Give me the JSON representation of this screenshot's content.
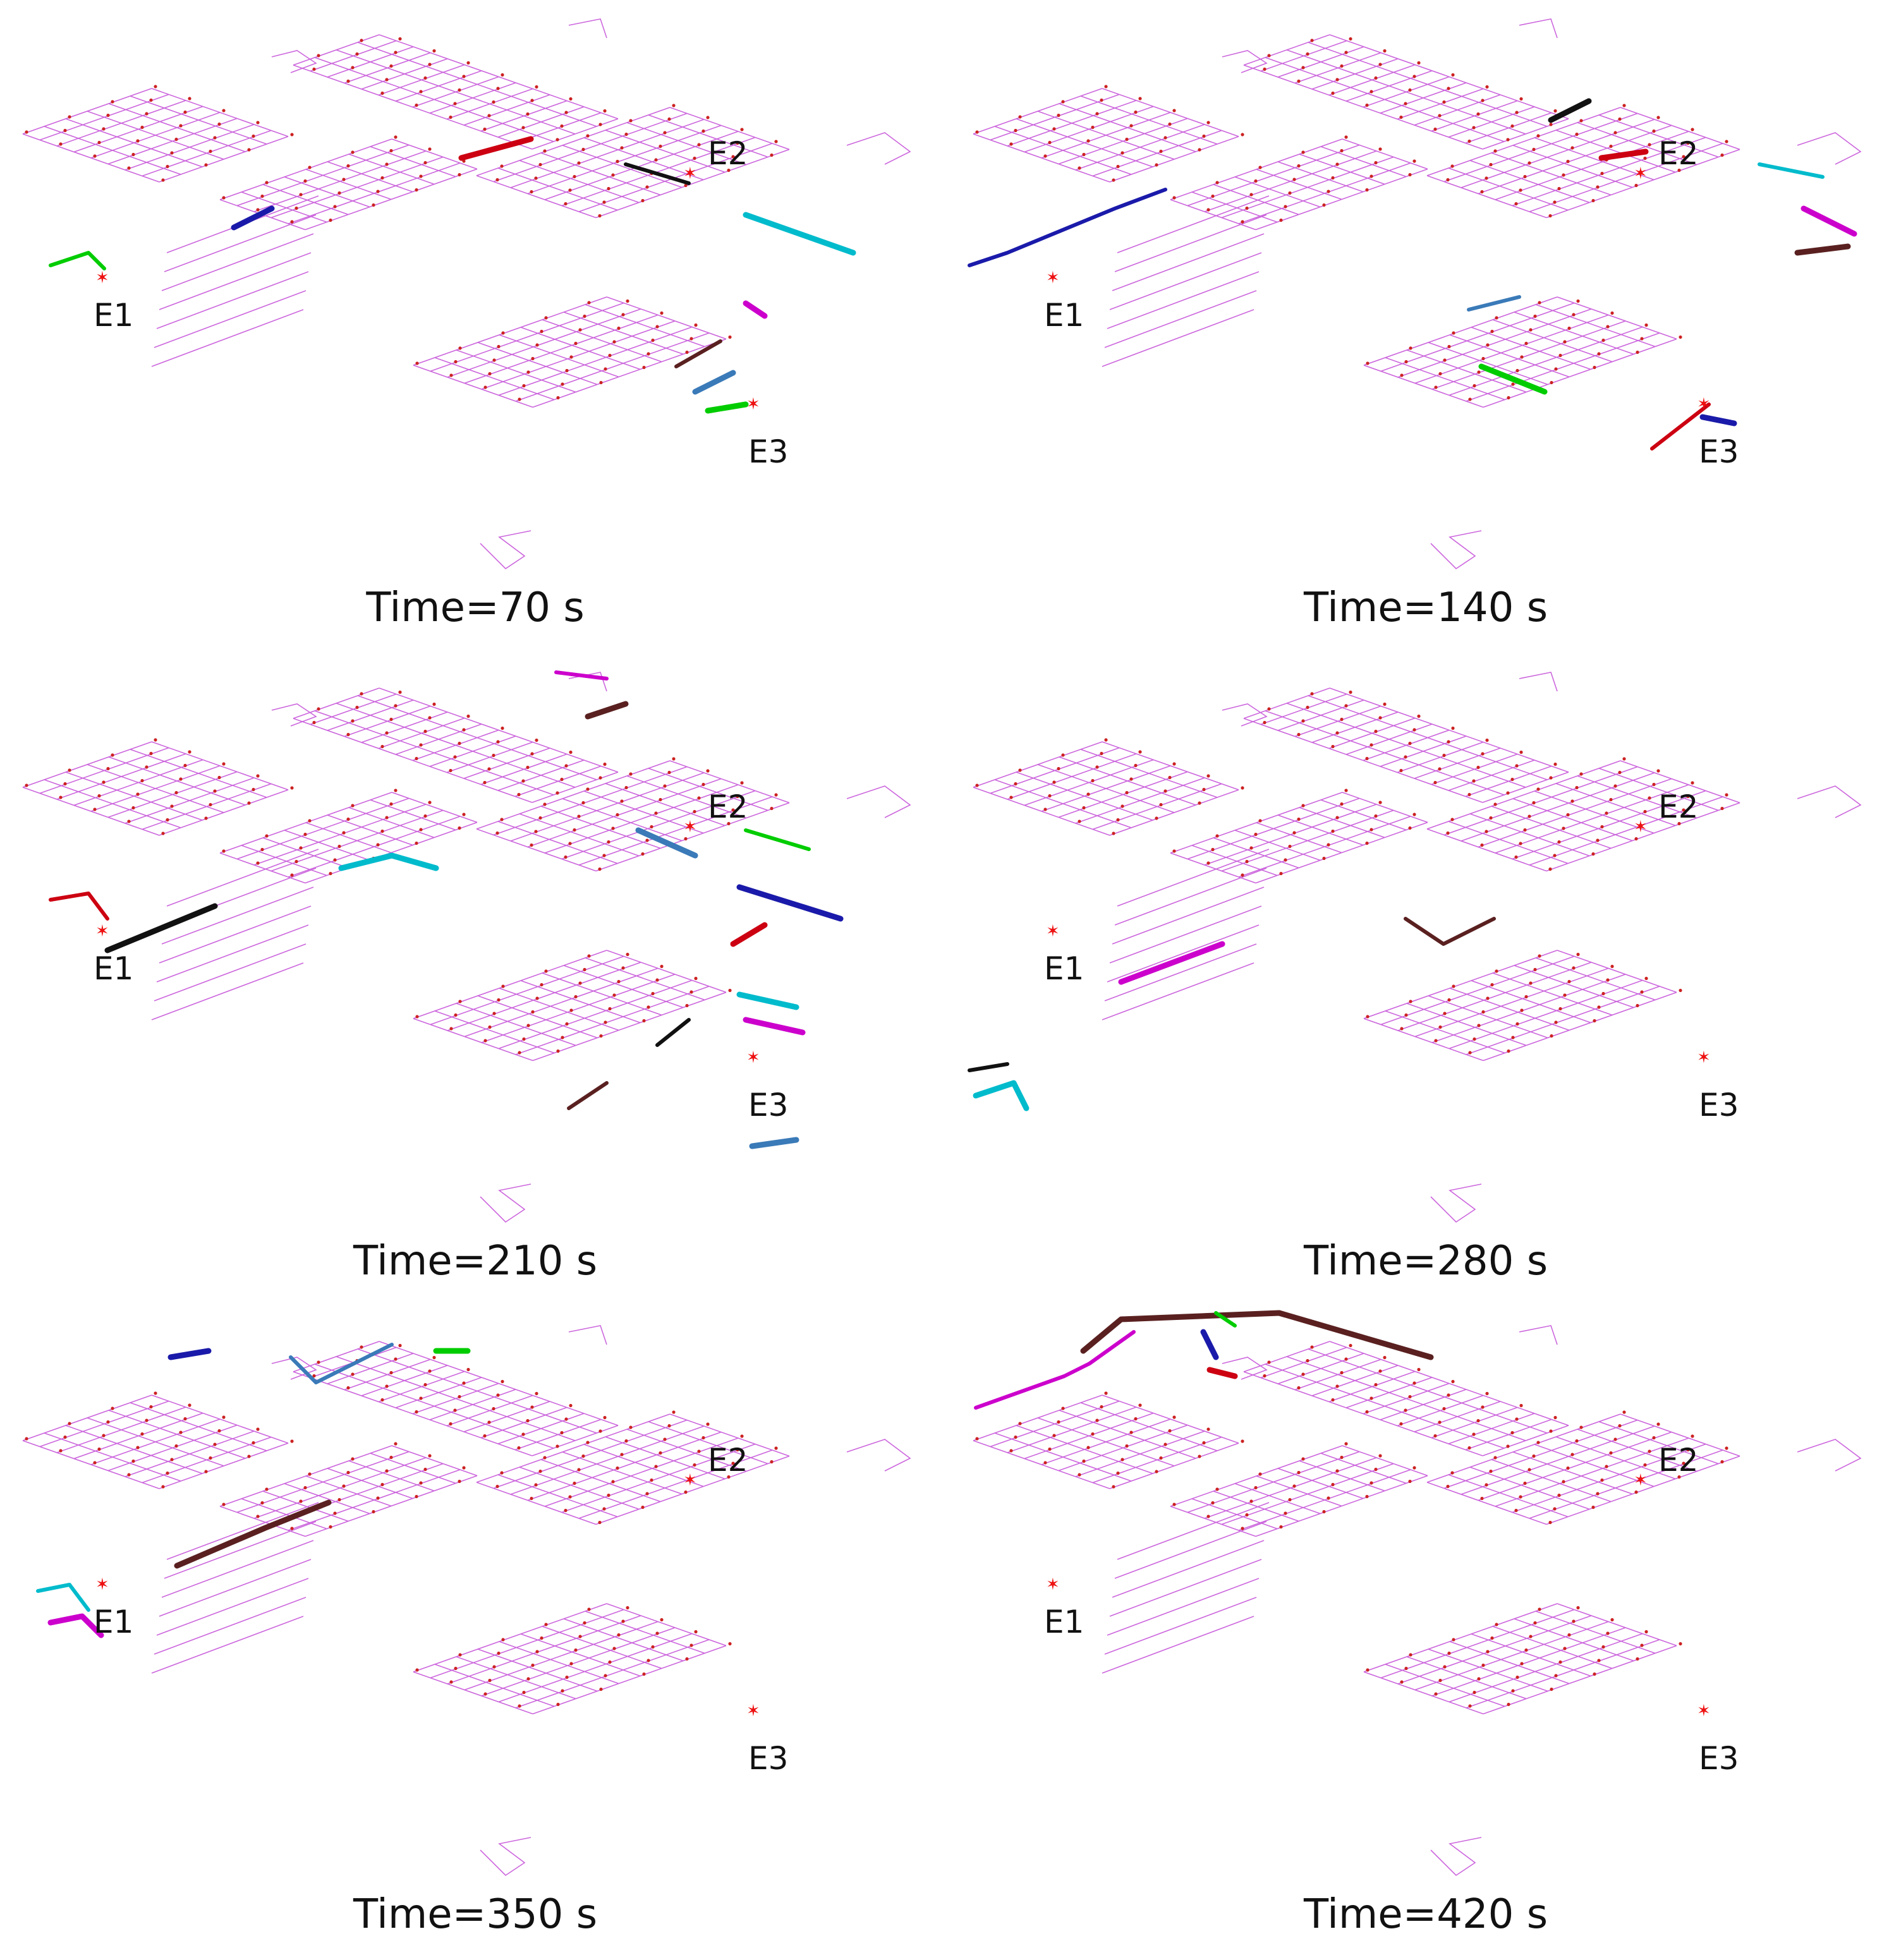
{
  "colors": {
    "network": "#cc66dd",
    "node": "#cc2222",
    "exit_marker": "#ee1111",
    "text": "#111111",
    "path_palette": [
      "#00cc00",
      "#1a1aaa",
      "#cc0011",
      "#111111",
      "#00bbcc",
      "#cc00cc",
      "#5a2020",
      "#3a7ab8"
    ]
  },
  "panels": [
    {
      "id": "t70",
      "caption": "Time=70 s",
      "exits": [
        "E1",
        "E2",
        "E3"
      ]
    },
    {
      "id": "t140",
      "caption": "Time=140 s",
      "exits": [
        "E1",
        "E2",
        "E3"
      ]
    },
    {
      "id": "t210",
      "caption": "Time=210 s",
      "exits": [
        "E1",
        "E2",
        "E3"
      ]
    },
    {
      "id": "t280",
      "caption": "Time=280 s",
      "exits": [
        "E1",
        "E2",
        "E3"
      ]
    },
    {
      "id": "t350",
      "caption": "Time=350 s",
      "exits": [
        "E1",
        "E2",
        "E3"
      ]
    },
    {
      "id": "t420",
      "caption": "Time=420 s",
      "exits": [
        "E1",
        "E2",
        "E3"
      ]
    }
  ]
}
